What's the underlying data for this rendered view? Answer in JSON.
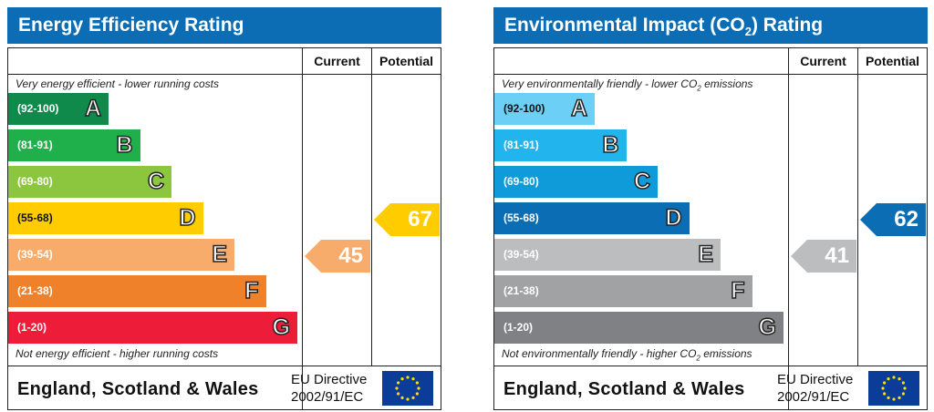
{
  "chart_data": [
    {
      "type": "bar",
      "title": "Energy Efficiency Rating",
      "columns": [
        "Current",
        "Potential"
      ],
      "top_note": "Very energy efficient - lower running costs",
      "bottom_note": "Not energy efficient - higher running costs",
      "bands": [
        {
          "letter": "A",
          "range": "(92-100)",
          "color": "#0f8a4b"
        },
        {
          "letter": "B",
          "range": "(81-91)",
          "color": "#20b04b"
        },
        {
          "letter": "C",
          "range": "(69-80)",
          "color": "#8cc63e"
        },
        {
          "letter": "D",
          "range": "(55-68)",
          "color": "#ffcc00"
        },
        {
          "letter": "E",
          "range": "(39-54)",
          "color": "#f7ac6b"
        },
        {
          "letter": "F",
          "range": "(21-38)",
          "color": "#f0812b"
        },
        {
          "letter": "G",
          "range": "(1-20)",
          "color": "#ed1c39"
        }
      ],
      "current": {
        "value": 45,
        "band": "E",
        "color": "#f7ac6b"
      },
      "potential": {
        "value": 67,
        "band": "D",
        "color": "#ffcc00"
      },
      "footer": {
        "region": "England, Scotland & Wales",
        "directive_line1": "EU Directive",
        "directive_line2": "2002/91/EC"
      }
    },
    {
      "type": "bar",
      "title": "Environmental Impact (CO2) Rating",
      "columns": [
        "Current",
        "Potential"
      ],
      "top_note": "Very environmentally friendly - lower CO2 emissions",
      "bottom_note": "Not environmentally friendly - higher CO2 emissions",
      "bands": [
        {
          "letter": "A",
          "range": "(92-100)",
          "color": "#6ccff6"
        },
        {
          "letter": "B",
          "range": "(81-91)",
          "color": "#22b4ec"
        },
        {
          "letter": "C",
          "range": "(69-80)",
          "color": "#0f9ad9"
        },
        {
          "letter": "D",
          "range": "(55-68)",
          "color": "#0b6db4"
        },
        {
          "letter": "E",
          "range": "(39-54)",
          "color": "#bbbdbf"
        },
        {
          "letter": "F",
          "range": "(21-38)",
          "color": "#a0a2a4"
        },
        {
          "letter": "G",
          "range": "(1-20)",
          "color": "#808184"
        }
      ],
      "current": {
        "value": 41,
        "band": "E",
        "color": "#bbbdbf"
      },
      "potential": {
        "value": 62,
        "band": "D",
        "color": "#0b6db4"
      },
      "footer": {
        "region": "England, Scotland & Wales",
        "directive_line1": "EU Directive",
        "directive_line2": "2002/91/EC"
      }
    }
  ]
}
